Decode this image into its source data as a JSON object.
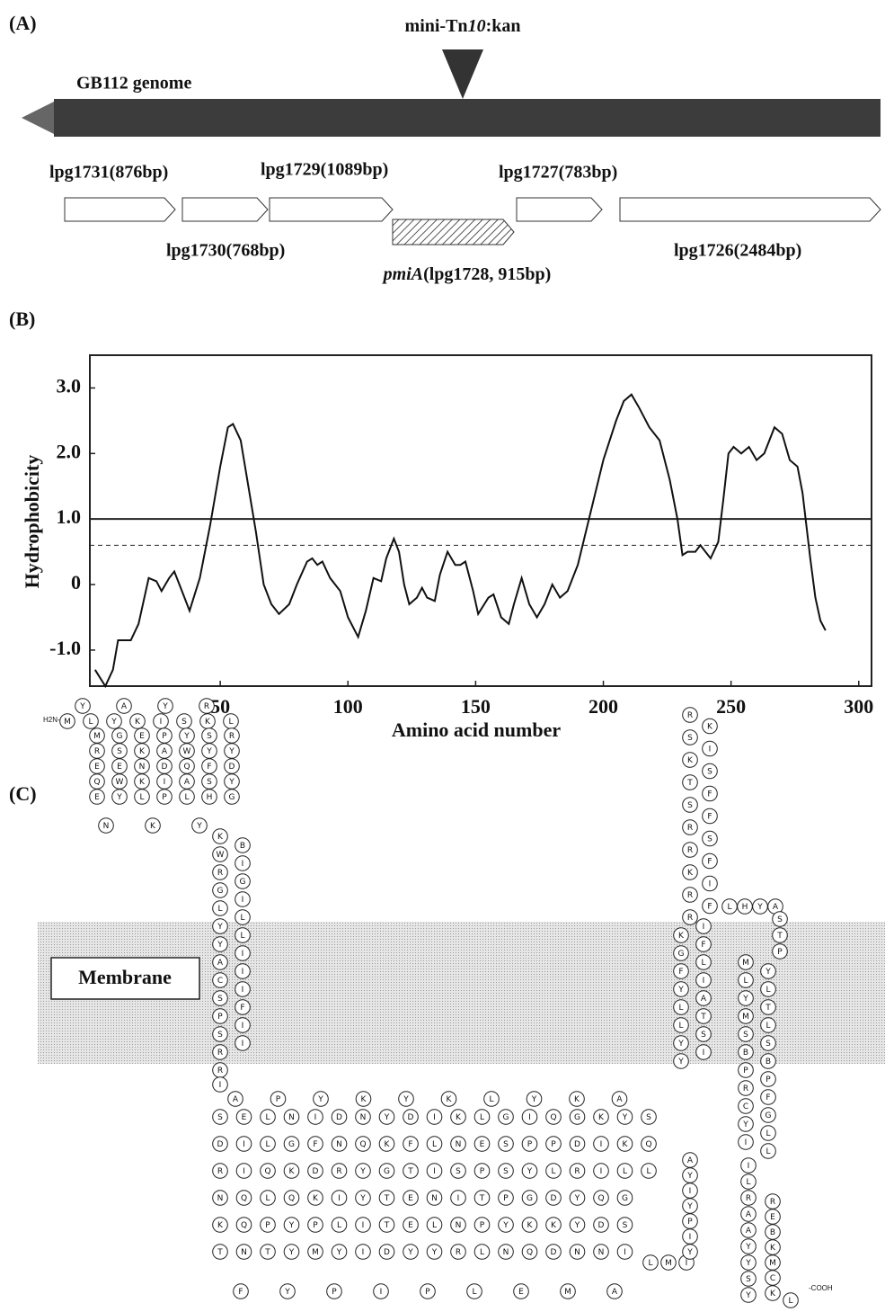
{
  "panel_a": {
    "label": "(A)",
    "insertion": [
      "mini-Tn",
      "10",
      ":kan"
    ],
    "genome": "GB112 genome",
    "genes": [
      "lpg1731(876bp)",
      "lpg1730(768bp)",
      "lpg1729(1089bp)",
      "lpg1727(783bp)",
      "lpg1726(2484bp)"
    ],
    "target_gene": [
      "pmiA",
      "(lpg1728, 915bp)"
    ]
  },
  "chart_data": {
    "type": "line",
    "panel_label": "(B)",
    "x_label": "Amino acid number",
    "y_label": "Hydrophobicity",
    "xlim": [
      0,
      305
    ],
    "ylim": [
      -1.55,
      3.5
    ],
    "xticks": [
      50,
      100,
      150,
      200,
      250,
      300
    ],
    "yticks": [
      {
        "value": 3,
        "label": "3.0"
      },
      {
        "value": 2,
        "label": "2.0"
      },
      {
        "value": 1,
        "label": "1.0"
      },
      0,
      {
        "value": -1,
        "label": "-1.0"
      }
    ],
    "hlines": [
      {
        "value": 1.0,
        "style": "solid"
      },
      {
        "value": 0.6,
        "style": "dashed"
      }
    ],
    "color": "#111111",
    "x": [
      1,
      5,
      8,
      10,
      15,
      18,
      22,
      25,
      27,
      30,
      32,
      35,
      38,
      42,
      46,
      50,
      53,
      55,
      58,
      61,
      64,
      67,
      70,
      73,
      77,
      80,
      84,
      86,
      88,
      90,
      93,
      97,
      100,
      104,
      107,
      110,
      113,
      115,
      118,
      120,
      122,
      124,
      127,
      129,
      131,
      134,
      136,
      139,
      142,
      144,
      146,
      149,
      151,
      155,
      157,
      160,
      163,
      165,
      168,
      171,
      174,
      177,
      180,
      183,
      186,
      190,
      195,
      200,
      205,
      208,
      211,
      214,
      218,
      222,
      226,
      229,
      231,
      233,
      236,
      238,
      240,
      242,
      245,
      247,
      249,
      251,
      254,
      257,
      260,
      263,
      267,
      270,
      273,
      276,
      278,
      281,
      283,
      285,
      287
    ],
    "values": [
      -1.3,
      -1.55,
      -1.3,
      -0.85,
      -0.85,
      -0.6,
      0.1,
      0.05,
      -0.1,
      0.1,
      0.2,
      -0.1,
      -0.4,
      0.1,
      0.9,
      1.8,
      2.4,
      2.45,
      2.2,
      1.5,
      0.8,
      0.0,
      -0.3,
      -0.45,
      -0.3,
      0.0,
      0.35,
      0.4,
      0.3,
      0.35,
      0.1,
      -0.1,
      -0.5,
      -0.8,
      -0.4,
      0.1,
      0.05,
      0.4,
      0.7,
      0.5,
      0.0,
      -0.3,
      -0.2,
      -0.05,
      -0.2,
      -0.25,
      0.15,
      0.5,
      0.3,
      0.3,
      0.35,
      -0.1,
      -0.45,
      -0.2,
      -0.15,
      -0.5,
      -0.6,
      -0.3,
      0.1,
      -0.3,
      -0.5,
      -0.3,
      0.0,
      -0.2,
      -0.1,
      0.3,
      1.1,
      1.9,
      2.5,
      2.8,
      2.9,
      2.7,
      2.4,
      2.2,
      1.6,
      1.0,
      0.45,
      0.5,
      0.5,
      0.6,
      0.5,
      0.4,
      0.65,
      1.3,
      2.0,
      2.1,
      2.0,
      2.1,
      1.9,
      2.0,
      2.4,
      2.3,
      1.9,
      1.8,
      1.4,
      0.4,
      -0.2,
      -0.55,
      -0.7
    ]
  },
  "panel_c": {
    "label": "(C)",
    "membrane": "Membrane",
    "n_terminus": "H2N-",
    "c_terminus": "-COOH",
    "residues": {
      "top_rows": [
        "YAYR",
        "MLYKISKL",
        "MGEPYSR",
        "RSKAWYY",
        "EENDQFD",
        "QWKIASY",
        "EYLPLHG",
        "NKY"
      ],
      "tm1": "KBWIRGGILLYLYIAICISFPISIR",
      "link1": "RI",
      "bottom_rows": [
        "APYKYKLYKA",
        "SELNIDNYDIKLGIQGKYS",
        "DILGFNQKFLNESPPDIKQ",
        "RIQKDRYGTISPSYLRILL",
        "NQLQKIYTENITPGDYQG",
        "KQPYPLITELNPYKKYDS",
        "TNTYMYIDYYRLNQDNNI",
        "FYPIPLEMA"
      ],
      "link2": "LMI",
      "up_column": "YIPYIYA",
      "tm2": "YIYSLTLAYIFLGFKI",
      "loop": "RFRIKFRSRFSFTSKISKR",
      "turn": "LHYA",
      "down": "STP",
      "tm3": "MYLLYTMLSSBBPPRFCGYLIL",
      "tail": "ILRAAYYSY",
      "tail_side": "REBKMCK",
      "end": "L"
    }
  }
}
